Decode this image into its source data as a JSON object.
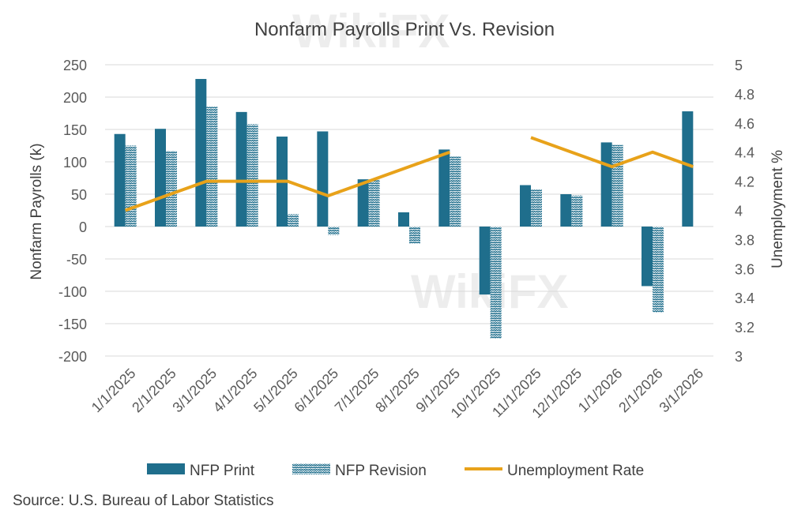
{
  "chart_data": {
    "type": "bar",
    "title": "Nonfarm Payrolls Print Vs. Revision",
    "categories": [
      "1/1/2025",
      "2/1/2025",
      "3/1/2025",
      "4/1/2025",
      "5/1/2025",
      "6/1/2025",
      "7/1/2025",
      "8/1/2025",
      "9/1/2025",
      "10/1/2025",
      "11/1/2025",
      "12/1/2025",
      "1/1/2026",
      "2/1/2026",
      "3/1/2026"
    ],
    "series": [
      {
        "name": "NFP Print",
        "kind": "bar",
        "axis": "left",
        "color": "#1f6e8c",
        "values": [
          143,
          151,
          228,
          177,
          139,
          147,
          73,
          22,
          119,
          -105,
          64,
          50,
          130,
          -92,
          178
        ]
      },
      {
        "name": "NFP Revision",
        "kind": "bar-pattern",
        "axis": "left",
        "color": "#1f6e8c",
        "values": [
          125,
          117,
          185,
          158,
          19,
          -13,
          73,
          -26,
          108,
          -173,
          57,
          48,
          126,
          -133,
          null
        ]
      },
      {
        "name": "Unemployment Rate",
        "kind": "line",
        "axis": "right",
        "color": "#e8a21a",
        "values": [
          4.0,
          4.1,
          4.2,
          4.2,
          4.2,
          4.1,
          4.2,
          4.3,
          4.4,
          null,
          4.5,
          4.4,
          4.3,
          4.4,
          4.3
        ]
      }
    ],
    "ylabel": "Nonfarm Payrolls (k)",
    "y2label": "Unemployment  %",
    "ylim": [
      -200,
      250
    ],
    "yticks": [
      250,
      200,
      150,
      100,
      50,
      0,
      -50,
      -100,
      -150,
      -200
    ],
    "y2lim": [
      3,
      5
    ],
    "y2ticks": [
      "5",
      "4.8",
      "4.6",
      "4.4",
      "4.2",
      "4",
      "3.8",
      "3.6",
      "3.4",
      "3.2",
      "3"
    ],
    "legend_position": "bottom",
    "grid": true
  },
  "source": "Source: U.S. Bureau of Labor Statistics",
  "watermark": "WikiFX"
}
